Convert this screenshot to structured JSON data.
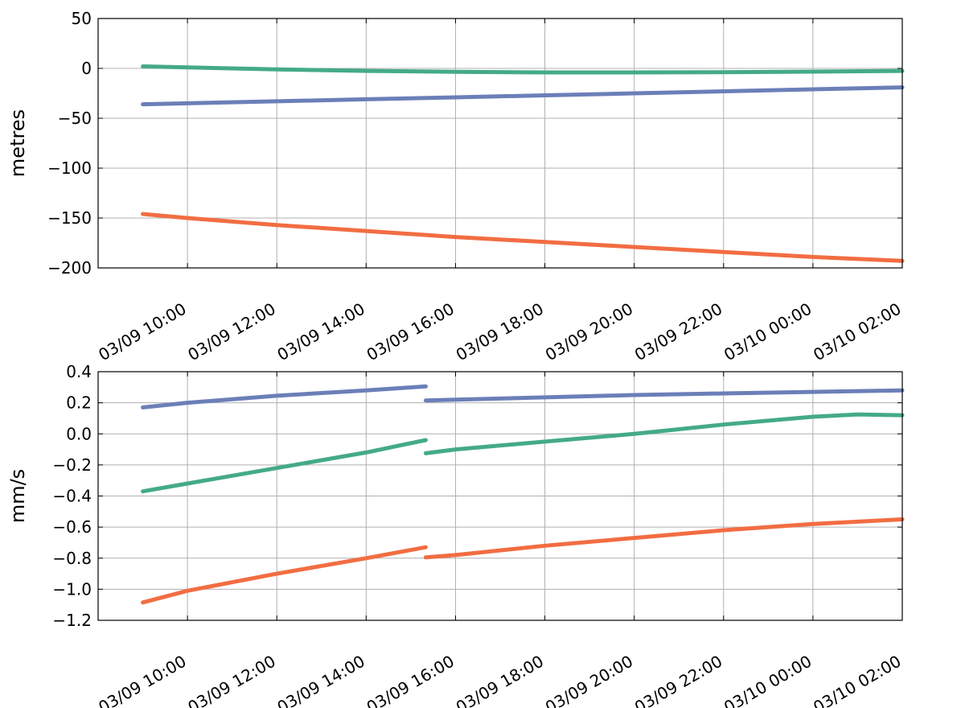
{
  "chart_data": [
    {
      "type": "line",
      "title": "",
      "xlabel": "",
      "ylabel": "metres",
      "xlim": [
        "03/09 08:00",
        "03/10 02:00"
      ],
      "ylim": [
        -200,
        50
      ],
      "yticks": [
        50,
        0,
        -50,
        -100,
        -150,
        -200
      ],
      "yticklabels": [
        "50",
        "0",
        "−50",
        "−100",
        "−150",
        "−200"
      ],
      "xticks": [
        "03/09 10:00",
        "03/09 12:00",
        "03/09 14:00",
        "03/09 16:00",
        "03/09 18:00",
        "03/09 20:00",
        "03/09 22:00",
        "03/10 00:00",
        "03/10 02:00"
      ],
      "grid": true,
      "series": [
        {
          "color": "#44aa88",
          "segments": [
            {
              "x": [
                "03/09 09:00",
                "03/09 10:00",
                "03/09 12:00",
                "03/09 14:00",
                "03/09 16:00",
                "03/09 18:00",
                "03/09 20:00",
                "03/09 22:00",
                "03/10 00:00",
                "03/10 02:00"
              ],
              "y": [
                2,
                1,
                -1,
                -2.5,
                -3.5,
                -4,
                -4,
                -3.8,
                -3.2,
                -2.5
              ]
            }
          ]
        },
        {
          "color": "#6b7fb8",
          "segments": [
            {
              "x": [
                "03/09 09:00",
                "03/09 10:00",
                "03/09 12:00",
                "03/09 14:00",
                "03/09 16:00",
                "03/09 18:00",
                "03/09 20:00",
                "03/09 22:00",
                "03/10 00:00",
                "03/10 02:00"
              ],
              "y": [
                -36,
                -35,
                -33,
                -31,
                -29,
                -27,
                -25,
                -23,
                -21,
                -19
              ]
            }
          ]
        },
        {
          "color": "#f26d42",
          "segments": [
            {
              "x": [
                "03/09 09:00",
                "03/09 10:00",
                "03/09 12:00",
                "03/09 14:00",
                "03/09 16:00",
                "03/09 18:00",
                "03/09 20:00",
                "03/09 22:00",
                "03/10 00:00",
                "03/10 02:00"
              ],
              "y": [
                -146,
                -150,
                -157,
                -163,
                -169,
                -174,
                -179,
                -184,
                -189,
                -193
              ]
            }
          ]
        }
      ]
    },
    {
      "type": "line",
      "title": "",
      "xlabel": "",
      "ylabel": "mm/s",
      "xlim": [
        "03/09 08:00",
        "03/10 02:00"
      ],
      "ylim": [
        -1.2,
        0.4
      ],
      "yticks": [
        0.4,
        0.2,
        0.0,
        -0.2,
        -0.4,
        -0.6,
        -0.8,
        -1.0,
        -1.2
      ],
      "yticklabels": [
        "0.4",
        "0.2",
        "0.0",
        "−0.2",
        "−0.4",
        "−0.6",
        "−0.8",
        "−1.0",
        "−1.2"
      ],
      "xticks": [
        "03/09 10:00",
        "03/09 12:00",
        "03/09 14:00",
        "03/09 16:00",
        "03/09 18:00",
        "03/09 20:00",
        "03/09 22:00",
        "03/10 00:00",
        "03/10 02:00"
      ],
      "grid": true,
      "series": [
        {
          "color": "#6b7fb8",
          "segments": [
            {
              "x": [
                "03/09 09:00",
                "03/09 10:00",
                "03/09 12:00",
                "03/09 14:00",
                "03/09 15:20"
              ],
              "y": [
                0.17,
                0.2,
                0.245,
                0.28,
                0.305
              ]
            },
            {
              "x": [
                "03/09 15:20",
                "03/09 16:00",
                "03/09 18:00",
                "03/09 20:00",
                "03/09 22:00",
                "03/10 00:00",
                "03/10 02:00"
              ],
              "y": [
                0.215,
                0.22,
                0.235,
                0.25,
                0.26,
                0.27,
                0.28
              ]
            }
          ]
        },
        {
          "color": "#44aa88",
          "segments": [
            {
              "x": [
                "03/09 09:00",
                "03/09 10:00",
                "03/09 12:00",
                "03/09 14:00",
                "03/09 15:20"
              ],
              "y": [
                -0.37,
                -0.32,
                -0.22,
                -0.12,
                -0.04
              ]
            },
            {
              "x": [
                "03/09 15:20",
                "03/09 16:00",
                "03/09 18:00",
                "03/09 20:00",
                "03/09 22:00",
                "03/10 00:00",
                "03/10 01:00",
                "03/10 02:00"
              ],
              "y": [
                -0.125,
                -0.1,
                -0.05,
                0.0,
                0.06,
                0.11,
                0.125,
                0.12
              ]
            }
          ]
        },
        {
          "color": "#f26d42",
          "segments": [
            {
              "x": [
                "03/09 09:00",
                "03/09 10:00",
                "03/09 12:00",
                "03/09 14:00",
                "03/09 15:20"
              ],
              "y": [
                -1.085,
                -1.01,
                -0.9,
                -0.8,
                -0.73
              ]
            },
            {
              "x": [
                "03/09 15:20",
                "03/09 16:00",
                "03/09 18:00",
                "03/09 20:00",
                "03/09 22:00",
                "03/10 00:00",
                "03/10 02:00"
              ],
              "y": [
                -0.795,
                -0.78,
                -0.72,
                -0.67,
                -0.62,
                -0.58,
                -0.55
              ]
            }
          ]
        }
      ]
    }
  ]
}
